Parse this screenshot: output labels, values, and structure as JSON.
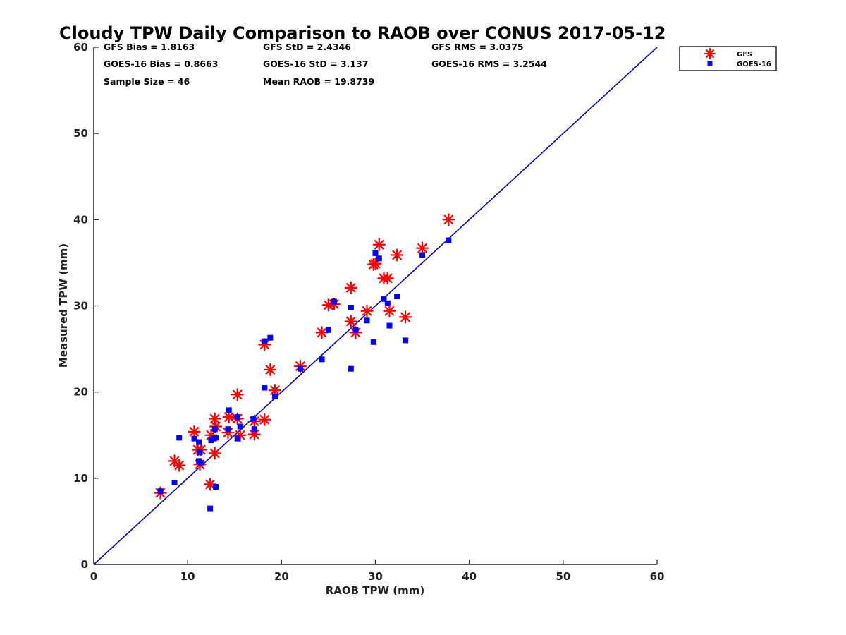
{
  "chart_data": {
    "type": "scatter",
    "title": "Cloudy TPW Daily Comparison to RAOB over CONUS 2017-05-12",
    "xlabel": "RAOB TPW (mm)",
    "ylabel": "Measured TPW (mm)",
    "xlim": [
      0,
      60
    ],
    "ylim": [
      0,
      60
    ],
    "xticks": [
      "0",
      "10",
      "20",
      "30",
      "40",
      "50",
      "60"
    ],
    "yticks": [
      "0",
      "10",
      "20",
      "30",
      "40",
      "50",
      "60"
    ],
    "grid": false,
    "legend_position": "top-right",
    "reference_line": {
      "x": [
        0,
        60
      ],
      "y": [
        0,
        60
      ],
      "color": "#0000cc"
    },
    "stats": [
      [
        "GFS Bias = 1.8163",
        "GFS StD = 2.4346",
        "GFS RMS = 3.0375"
      ],
      [
        "GOES-16 Bias = 0.8663",
        "GOES-16 StD = 3.137",
        "GOES-16 RMS = 3.2544"
      ],
      [
        "Sample Size = 46",
        "Mean RAOB = 19.8739",
        ""
      ]
    ],
    "series": [
      {
        "name": "GFS",
        "marker": "asterisk",
        "color": "#ff0000",
        "points": [
          [
            7.1,
            8.3
          ],
          [
            8.6,
            12.0
          ],
          [
            9.1,
            11.5
          ],
          [
            10.7,
            15.4
          ],
          [
            11.1,
            13.3
          ],
          [
            11.4,
            13.3
          ],
          [
            11.3,
            11.6
          ],
          [
            12.4,
            9.3
          ],
          [
            12.5,
            15.0
          ],
          [
            12.9,
            16.9
          ],
          [
            13.0,
            16.0
          ],
          [
            12.9,
            12.9
          ],
          [
            14.3,
            15.3
          ],
          [
            14.4,
            17.1
          ],
          [
            15.3,
            19.7
          ],
          [
            15.3,
            16.9
          ],
          [
            15.6,
            15.0
          ],
          [
            17.1,
            15.1
          ],
          [
            17.1,
            16.6
          ],
          [
            18.2,
            25.5
          ],
          [
            18.2,
            16.8
          ],
          [
            18.8,
            22.6
          ],
          [
            19.3,
            20.2
          ],
          [
            22.0,
            23.0
          ],
          [
            24.3,
            26.9
          ],
          [
            25.0,
            30.1
          ],
          [
            25.6,
            30.2
          ],
          [
            27.4,
            32.1
          ],
          [
            27.4,
            28.2
          ],
          [
            27.9,
            26.9
          ],
          [
            29.1,
            29.4
          ],
          [
            29.8,
            34.8
          ],
          [
            30.0,
            34.9
          ],
          [
            30.4,
            37.1
          ],
          [
            30.9,
            33.2
          ],
          [
            31.3,
            33.2
          ],
          [
            31.5,
            29.4
          ],
          [
            32.3,
            35.9
          ],
          [
            33.2,
            28.7
          ],
          [
            35.0,
            36.7
          ],
          [
            37.8,
            40.0
          ]
        ]
      },
      {
        "name": "GOES-16",
        "marker": "square",
        "color": "#0000ff",
        "points": [
          [
            7.1,
            8.5
          ],
          [
            8.6,
            9.5
          ],
          [
            9.1,
            14.7
          ],
          [
            10.7,
            14.6
          ],
          [
            11.2,
            14.2
          ],
          [
            11.3,
            13.0
          ],
          [
            11.2,
            12.0
          ],
          [
            11.4,
            11.8
          ],
          [
            12.4,
            6.5
          ],
          [
            12.5,
            14.4
          ],
          [
            12.8,
            14.6
          ],
          [
            12.9,
            15.7
          ],
          [
            13.0,
            9.0
          ],
          [
            13.0,
            14.7
          ],
          [
            14.3,
            15.7
          ],
          [
            14.4,
            17.9
          ],
          [
            15.3,
            17.1
          ],
          [
            15.3,
            14.6
          ],
          [
            15.6,
            16.0
          ],
          [
            17.0,
            16.9
          ],
          [
            17.1,
            15.7
          ],
          [
            18.2,
            20.5
          ],
          [
            18.2,
            25.9
          ],
          [
            18.8,
            26.3
          ],
          [
            19.3,
            19.5
          ],
          [
            22.0,
            22.7
          ],
          [
            24.3,
            23.8
          ],
          [
            25.0,
            27.2
          ],
          [
            25.6,
            30.5
          ],
          [
            27.4,
            29.8
          ],
          [
            27.4,
            22.7
          ],
          [
            27.9,
            27.2
          ],
          [
            29.1,
            28.3
          ],
          [
            29.8,
            25.8
          ],
          [
            30.0,
            36.1
          ],
          [
            30.4,
            35.5
          ],
          [
            30.9,
            30.8
          ],
          [
            31.3,
            30.3
          ],
          [
            31.5,
            27.7
          ],
          [
            32.3,
            31.1
          ],
          [
            33.2,
            26.0
          ],
          [
            35.0,
            35.9
          ],
          [
            37.8,
            37.6
          ]
        ]
      }
    ]
  }
}
